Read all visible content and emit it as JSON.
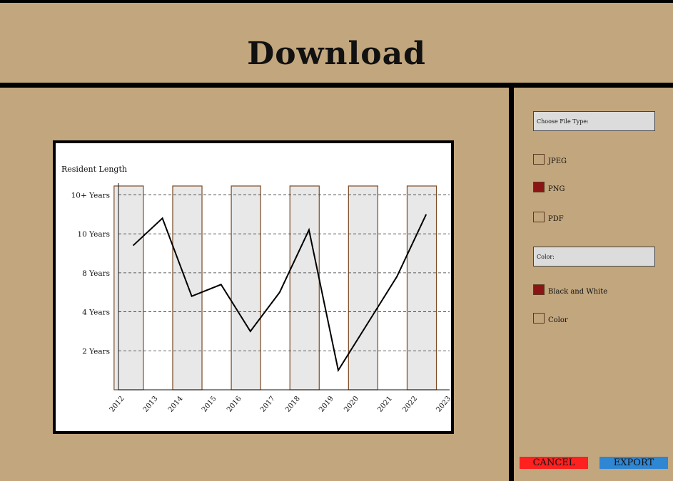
{
  "header": {
    "title": "Download"
  },
  "colors": {
    "background": "#c2a67d",
    "checked": "#8b1414",
    "cancel": "#ff2020",
    "export": "#2f86d3",
    "bar_fill": "#e8e8e8",
    "bar_stroke": "#7a4a25"
  },
  "sidebar": {
    "file_type_label": "Choose File Type:",
    "file_types": [
      {
        "label": "JPEG",
        "checked": false
      },
      {
        "label": "PNG",
        "checked": true
      },
      {
        "label": "PDF",
        "checked": false
      }
    ],
    "color_label": "Color:",
    "color_options": [
      {
        "label": "Black and White",
        "checked": true
      },
      {
        "label": "Color",
        "checked": false
      }
    ]
  },
  "actions": {
    "cancel_label": "CANCEL",
    "export_label": "EXPORT"
  },
  "chart_data": {
    "type": "line",
    "title": "Resident Length",
    "y_tick_labels": [
      "2 Years",
      "4 Years",
      "8 Years",
      "10 Years",
      "10+ Years"
    ],
    "x_tick_labels": [
      "2012",
      "2013",
      "2014",
      "2015",
      "2016",
      "2017",
      "2018",
      "2019",
      "2020",
      "2021",
      "2022",
      "2023"
    ],
    "bar_years": [
      "2012-2013",
      "2014-2015",
      "2016-2017",
      "2018-2019",
      "2020-2021",
      "2022-2023"
    ],
    "line_points": [
      {
        "x": 2012.5,
        "y": 3.7
      },
      {
        "x": 2013.5,
        "y": 4.4
      },
      {
        "x": 2014.5,
        "y": 2.4
      },
      {
        "x": 2015.5,
        "y": 2.7
      },
      {
        "x": 2016.5,
        "y": 1.5
      },
      {
        "x": 2017.5,
        "y": 2.5
      },
      {
        "x": 2018.5,
        "y": 4.1
      },
      {
        "x": 2019.5,
        "y": 0.5
      },
      {
        "x": 2020.5,
        "y": 1.7
      },
      {
        "x": 2021.5,
        "y": 2.9
      },
      {
        "x": 2022.5,
        "y": 4.5
      }
    ],
    "ylim": [
      0,
      5.3
    ],
    "grid": "dashed horizontal",
    "bars": true
  }
}
